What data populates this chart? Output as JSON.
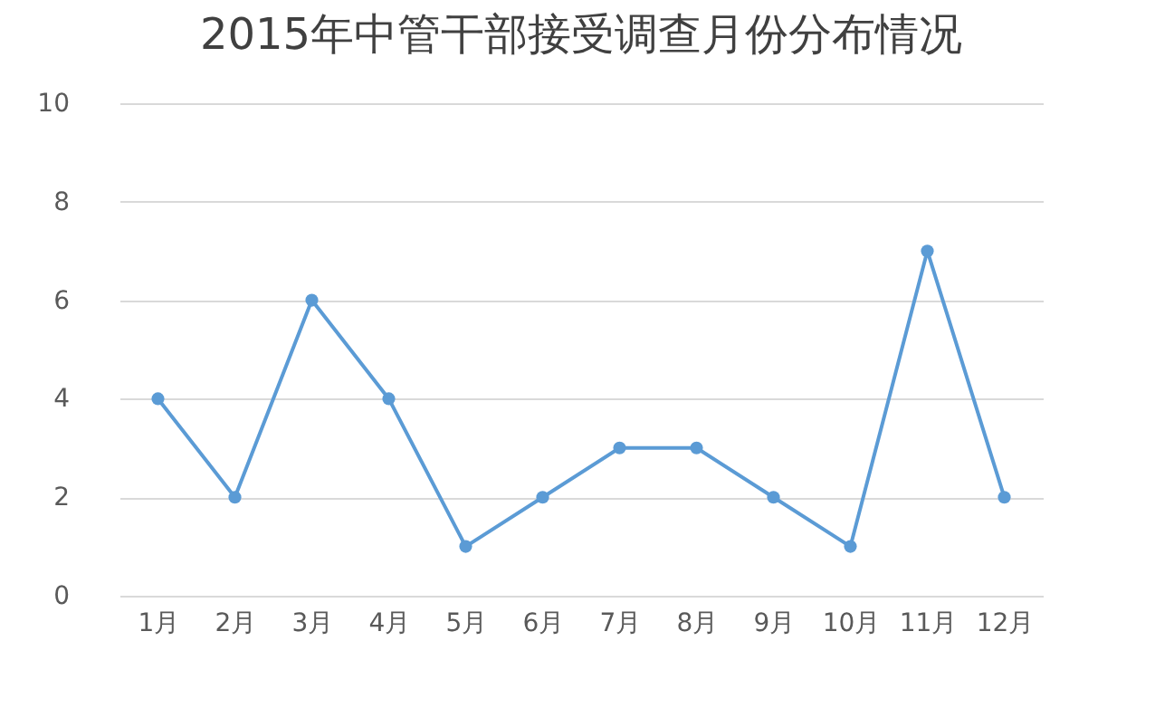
{
  "chart_data": {
    "type": "line",
    "title": "2015年中管干部接受调查月份分布情况",
    "categories": [
      "1月",
      "2月",
      "3月",
      "4月",
      "5月",
      "6月",
      "7月",
      "8月",
      "9月",
      "10月",
      "11月",
      "12月"
    ],
    "series": [
      {
        "color": "#5b9bd5",
        "values": [
          4,
          2,
          6,
          4,
          1,
          2,
          3,
          3,
          2,
          1,
          7,
          2
        ]
      }
    ],
    "ylim": [
      0,
      10
    ],
    "yticks": [
      0,
      2,
      4,
      6,
      8,
      10
    ],
    "grid": "y",
    "marker": "circle",
    "line_style": "solid"
  }
}
